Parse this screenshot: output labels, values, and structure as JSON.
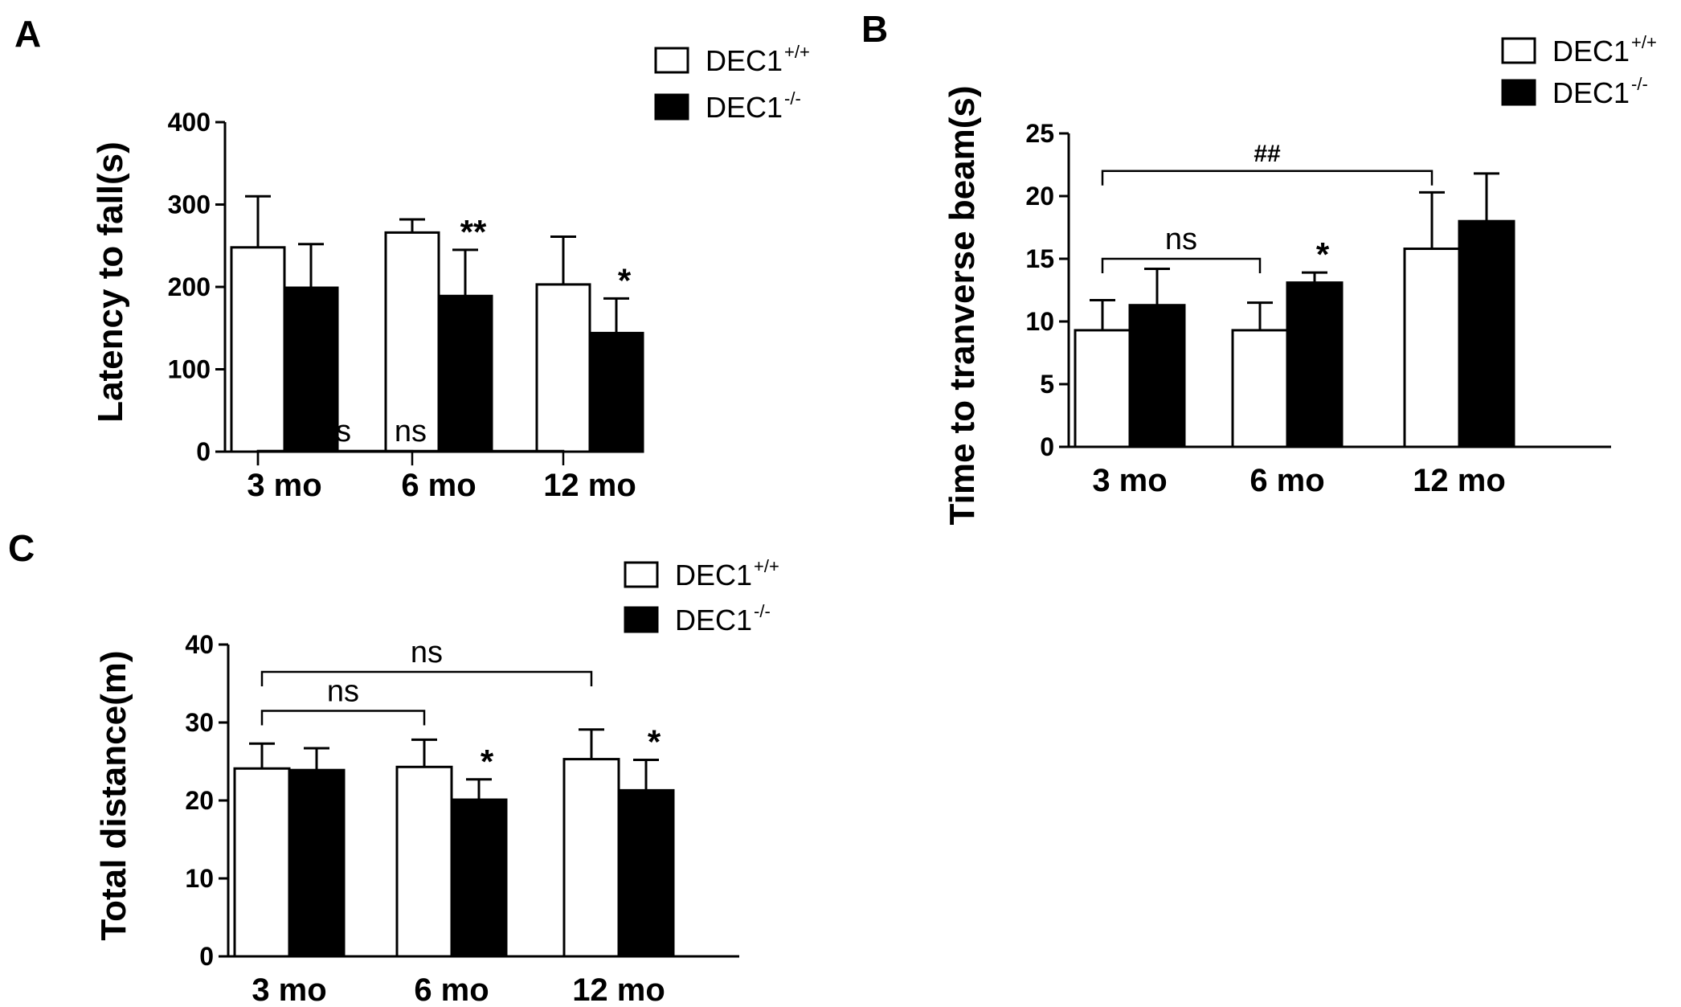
{
  "chart_data": [
    {
      "panel": "A",
      "type": "bar",
      "categories": [
        "3 mo",
        "6 mo",
        "12 mo"
      ],
      "ylabel": "Latency to fall(s)",
      "ylim": [
        0,
        400
      ],
      "yticks": [
        0,
        100,
        200,
        300,
        400
      ],
      "series": [
        {
          "name": "DEC1",
          "sup": "+/+",
          "fill": "#ffffff",
          "values": [
            248,
            266,
            203
          ],
          "errors": [
            62,
            16,
            58
          ]
        },
        {
          "name": "DEC1",
          "sup": "-/-",
          "fill": "#000000",
          "values": [
            199,
            189,
            144
          ],
          "errors": [
            53,
            56,
            42
          ]
        }
      ],
      "significance": [
        {
          "label": "ns",
          "from": 0,
          "to": 1,
          "level": 0.8
        },
        {
          "label": "ns",
          "from": 0,
          "to": 2,
          "level": 0.98
        }
      ],
      "stars": [
        {
          "label": "**",
          "category": 1,
          "series": 1
        },
        {
          "label": "*",
          "category": 2,
          "series": 1
        }
      ],
      "legend_position": "top-right"
    },
    {
      "panel": "B",
      "type": "bar",
      "categories": [
        "3 mo",
        "6 mo",
        "12 mo"
      ],
      "ylabel": "Time to tranverse beam(s)",
      "ylim": [
        0,
        25
      ],
      "yticks": [
        0,
        5,
        10,
        15,
        20,
        25
      ],
      "series": [
        {
          "name": "DEC1",
          "sup": "+/+",
          "fill": "#ffffff",
          "values": [
            9.3,
            9.3,
            15.8
          ],
          "errors": [
            2.4,
            2.2,
            4.5
          ]
        },
        {
          "name": "DEC1",
          "sup": "-/-",
          "fill": "#000000",
          "values": [
            11.3,
            13.1,
            18.0
          ],
          "errors": [
            2.9,
            0.8,
            3.8
          ]
        }
      ],
      "significance": [
        {
          "label": "ns",
          "from": 0,
          "to": 1,
          "level": 15.0
        },
        {
          "label": "##",
          "from": 0,
          "to": 2,
          "level": 22.0
        }
      ],
      "stars": [
        {
          "label": "*",
          "category": 1,
          "series": 1
        }
      ],
      "legend_position": "top-right"
    },
    {
      "panel": "C",
      "type": "bar",
      "categories": [
        "3 mo",
        "6 mo",
        "12 mo"
      ],
      "ylabel": "Total distance(m)",
      "ylim": [
        0,
        40
      ],
      "yticks": [
        0,
        10,
        20,
        30,
        40
      ],
      "series": [
        {
          "name": "DEC1",
          "sup": "+/+",
          "fill": "#ffffff",
          "values": [
            24.1,
            24.3,
            25.3
          ],
          "errors": [
            3.2,
            3.5,
            3.8
          ]
        },
        {
          "name": "DEC1",
          "sup": "-/-",
          "fill": "#000000",
          "values": [
            23.9,
            20.1,
            21.3
          ],
          "errors": [
            2.8,
            2.6,
            3.9
          ]
        }
      ],
      "significance": [
        {
          "label": "ns",
          "from": 0,
          "to": 1,
          "level": 31.5
        },
        {
          "label": "ns",
          "from": 0,
          "to": 2,
          "level": 36.5
        }
      ],
      "stars": [
        {
          "label": "*",
          "category": 1,
          "series": 1
        },
        {
          "label": "*",
          "category": 2,
          "series": 1
        }
      ],
      "legend_position": "top-right"
    }
  ]
}
